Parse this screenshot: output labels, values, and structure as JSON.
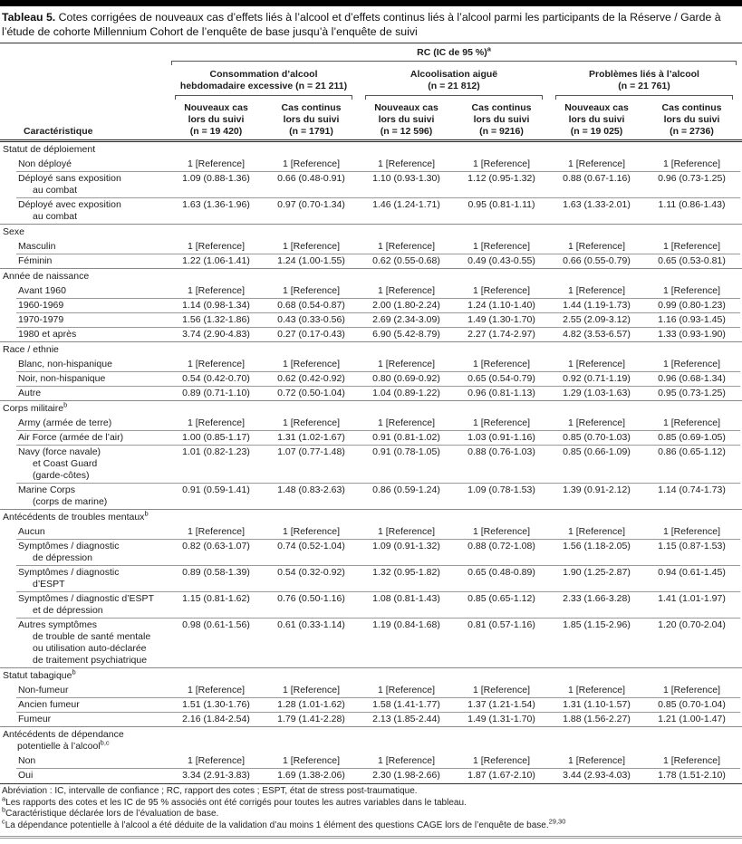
{
  "title": {
    "label": "Tableau 5.",
    "text": " Cotes corrigées de nouveaux cas d’effets liés à l’alcool et d’effets continus liés à l’alcool parmi les participants de la Réserve / Garde à l’étude de cohorte Millennium Cohort de l’enquête de base jusqu’à l’enquête de suivi"
  },
  "header": {
    "span_label": "RC (IC de 95 %)",
    "span_sup": "a",
    "row_label_header": "Caractéristique",
    "groups": [
      {
        "lines": [
          "Consommation d’alcool",
          "hebdomadaire excessive (n = 21 211)"
        ]
      },
      {
        "lines": [
          "Alcoolisation aiguë",
          "(n = 21 812)"
        ]
      },
      {
        "lines": [
          "Problèmes liés à l’alcool",
          "(n = 21 761)"
        ]
      }
    ],
    "columns": [
      {
        "lines": [
          "Nouveaux cas",
          "lors du suivi",
          "(n = 19 420)"
        ]
      },
      {
        "lines": [
          "Cas continus",
          "lors du suivi",
          "(n = 1791)"
        ]
      },
      {
        "lines": [
          "Nouveaux cas",
          "lors du suivi",
          "(n = 12 596)"
        ]
      },
      {
        "lines": [
          "Cas continus",
          "lors du suivi",
          "(n = 9216)"
        ]
      },
      {
        "lines": [
          "Nouveaux cas",
          "lors du suivi",
          "(n = 19 025)"
        ]
      },
      {
        "lines": [
          "Cas continus",
          "lors du suivi",
          "(n = 2736)"
        ]
      }
    ]
  },
  "sections": [
    {
      "label_lines": [
        "Statut de déploiement"
      ],
      "sup": "",
      "rows": [
        {
          "label_lines": [
            "Non déployé"
          ],
          "values": [
            "1 [Reference]",
            "1 [Reference]",
            "1 [Reference]",
            "1 [Reference]",
            "1 [Reference]",
            "1 [Reference]"
          ]
        },
        {
          "label_lines": [
            "Déployé sans exposition",
            "au combat"
          ],
          "values": [
            "1.09 (0.88-1.36)",
            "0.66 (0.48-0.91)",
            "1.10 (0.93-1.30)",
            "1.12 (0.95-1.32)",
            "0.88 (0.67-1.16)",
            "0.96 (0.73-1.25)"
          ]
        },
        {
          "label_lines": [
            "Déployé avec exposition",
            "au combat"
          ],
          "values": [
            "1.63 (1.36-1.96)",
            "0.97 (0.70-1.34)",
            "1.46 (1.24-1.71)",
            "0.95 (0.81-1.11)",
            "1.63 (1.33-2.01)",
            "1.11 (0.86-1.43)"
          ]
        }
      ]
    },
    {
      "label_lines": [
        "Sexe"
      ],
      "sup": "",
      "rows": [
        {
          "label_lines": [
            "Masculin"
          ],
          "values": [
            "1 [Reference]",
            "1 [Reference]",
            "1 [Reference]",
            "1 [Reference]",
            "1 [Reference]",
            "1 [Reference]"
          ]
        },
        {
          "label_lines": [
            "Féminin"
          ],
          "values": [
            "1.22 (1.06-1.41)",
            "1.24 (1.00-1.55)",
            "0.62 (0.55-0.68)",
            "0.49 (0.43-0.55)",
            "0.66 (0.55-0.79)",
            "0.65 (0.53-0.81)"
          ]
        }
      ]
    },
    {
      "label_lines": [
        "Année de naissance"
      ],
      "sup": "",
      "rows": [
        {
          "label_lines": [
            "Avant 1960"
          ],
          "values": [
            "1 [Reference]",
            "1 [Reference]",
            "1 [Reference]",
            "1 [Reference]",
            "1 [Reference]",
            "1 [Reference]"
          ]
        },
        {
          "label_lines": [
            "1960-1969"
          ],
          "values": [
            "1.14 (0.98-1.34)",
            "0.68 (0.54-0.87)",
            "2.00 (1.80-2.24)",
            "1.24 (1.10-1.40)",
            "1.44 (1.19-1.73)",
            "0.99 (0.80-1.23)"
          ]
        },
        {
          "label_lines": [
            "1970-1979"
          ],
          "values": [
            "1.56 (1.32-1.86)",
            "0.43 (0.33-0.56)",
            "2.69 (2.34-3.09)",
            "1.49 (1.30-1.70)",
            "2.55 (2.09-3.12)",
            "1.16 (0.93-1.45)"
          ]
        },
        {
          "label_lines": [
            "1980 et après"
          ],
          "values": [
            "3.74 (2.90-4.83)",
            "0.27 (0.17-0.43)",
            "6.90 (5.42-8.79)",
            "2.27 (1.74-2.97)",
            "4.82 (3.53-6.57)",
            "1.33 (0.93-1.90)"
          ]
        }
      ]
    },
    {
      "label_lines": [
        "Race / ethnie"
      ],
      "sup": "",
      "rows": [
        {
          "label_lines": [
            "Blanc, non-hispanique"
          ],
          "values": [
            "1 [Reference]",
            "1 [Reference]",
            "1 [Reference]",
            "1 [Reference]",
            "1 [Reference]",
            "1 [Reference]"
          ]
        },
        {
          "label_lines": [
            "Noir, non-hispanique"
          ],
          "values": [
            "0.54 (0.42-0.70)",
            "0.62 (0.42-0.92)",
            "0.80 (0.69-0.92)",
            "0.65 (0.54-0.79)",
            "0.92 (0.71-1.19)",
            "0.96 (0.68-1.34)"
          ]
        },
        {
          "label_lines": [
            "Autre"
          ],
          "values": [
            "0.89 (0.71-1.10)",
            "0.72 (0.50-1.04)",
            "1.04 (0.89-1.22)",
            "0.96 (0.81-1.13)",
            "1.29 (1.03-1.63)",
            "0.95 (0.73-1.25)"
          ]
        }
      ]
    },
    {
      "label_lines": [
        "Corps militaire"
      ],
      "sup": "b",
      "rows": [
        {
          "label_lines": [
            "Army (armée de terre)"
          ],
          "values": [
            "1 [Reference]",
            "1 [Reference]",
            "1 [Reference]",
            "1 [Reference]",
            "1 [Reference]",
            "1 [Reference]"
          ]
        },
        {
          "label_lines": [
            "Air Force (armée de l’air)"
          ],
          "values": [
            "1.00 (0.85-1.17)",
            "1.31 (1.02-1.67)",
            "0.91 (0.81-1.02)",
            "1.03 (0.91-1.16)",
            "0.85 (0.70-1.03)",
            "0.85 (0.69-1.05)"
          ]
        },
        {
          "label_lines": [
            "Navy (force navale)",
            "et Coast Guard",
            "(garde-côtes)"
          ],
          "values": [
            "1.01 (0.82-1.23)",
            "1.07 (0.77-1.48)",
            "0.91 (0.78-1.05)",
            "0.88 (0.76-1.03)",
            "0.85 (0.66-1.09)",
            "0.86 (0.65-1.12)"
          ]
        },
        {
          "label_lines": [
            "Marine Corps",
            "(corps de marine)"
          ],
          "values": [
            "0.91 (0.59-1.41)",
            "1.48 (0.83-2.63)",
            "0.86 (0.59-1.24)",
            "1.09 (0.78-1.53)",
            "1.39 (0.91-2.12)",
            "1.14 (0.74-1.73)"
          ]
        }
      ]
    },
    {
      "label_lines": [
        "Antécédents de troubles mentaux"
      ],
      "sup": "b",
      "rows": [
        {
          "label_lines": [
            "Aucun"
          ],
          "values": [
            "1 [Reference]",
            "1 [Reference]",
            "1 [Reference]",
            "1 [Reference]",
            "1 [Reference]",
            "1 [Reference]"
          ]
        },
        {
          "label_lines": [
            "Symptômes / diagnostic",
            "de dépression"
          ],
          "values": [
            "0.82 (0.63-1.07)",
            "0.74 (0.52-1.04)",
            "1.09 (0.91-1.32)",
            "0.88 (0.72-1.08)",
            "1.56 (1.18-2.05)",
            "1.15 (0.87-1.53)"
          ]
        },
        {
          "label_lines": [
            "Symptômes / diagnostic",
            "d’ESPT"
          ],
          "values": [
            "0.89 (0.58-1.39)",
            "0.54 (0.32-0.92)",
            "1.32 (0.95-1.82)",
            "0.65 (0.48-0.89)",
            "1.90 (1.25-2.87)",
            "0.94 (0.61-1.45)"
          ]
        },
        {
          "label_lines": [
            "Symptômes / diagnostic d’ESPT",
            "et de dépression"
          ],
          "values": [
            "1.15 (0.81-1.62)",
            "0.76 (0.50-1.16)",
            "1.08 (0.81-1.43)",
            "0.85 (0.65-1.12)",
            "2.33 (1.66-3.28)",
            "1.41 (1.01-1.97)"
          ]
        },
        {
          "label_lines": [
            "Autres symptômes",
            "de trouble de santé mentale",
            "ou utilisation auto-déclarée",
            "de traitement psychiatrique"
          ],
          "values": [
            "0.98 (0.61-1.56)",
            "0.61 (0.33-1.14)",
            "1.19 (0.84-1.68)",
            "0.81 (0.57-1.16)",
            "1.85 (1.15-2.96)",
            "1.20 (0.70-2.04)"
          ]
        }
      ]
    },
    {
      "label_lines": [
        "Statut tabagique"
      ],
      "sup": "b",
      "rows": [
        {
          "label_lines": [
            "Non-fumeur"
          ],
          "values": [
            "1 [Reference]",
            "1 [Reference]",
            "1 [Reference]",
            "1 [Reference]",
            "1 [Reference]",
            "1 [Reference]"
          ]
        },
        {
          "label_lines": [
            "Ancien fumeur"
          ],
          "values": [
            "1.51 (1.30-1.76)",
            "1.28 (1.01-1.62)",
            "1.58 (1.41-1.77)",
            "1.37 (1.21-1.54)",
            "1.31 (1.10-1.57)",
            "0.85 (0.70-1.04)"
          ]
        },
        {
          "label_lines": [
            "Fumeur"
          ],
          "values": [
            "2.16 (1.84-2.54)",
            "1.79 (1.41-2.28)",
            "2.13 (1.85-2.44)",
            "1.49 (1.31-1.70)",
            "1.88 (1.56-2.27)",
            "1.21 (1.00-1.47)"
          ]
        }
      ]
    },
    {
      "label_lines": [
        "Antécédents de dépendance",
        "potentielle à l’alcool"
      ],
      "sup": "b,c",
      "rows": [
        {
          "label_lines": [
            "Non"
          ],
          "values": [
            "1 [Reference]",
            "1 [Reference]",
            "1 [Reference]",
            "1 [Reference]",
            "1 [Reference]",
            "1 [Reference]"
          ]
        },
        {
          "label_lines": [
            "Oui"
          ],
          "values": [
            "3.34 (2.91-3.83)",
            "1.69 (1.38-2.06)",
            "2.30 (1.98-2.66)",
            "1.87 (1.67-2.10)",
            "3.44 (2.93-4.03)",
            "1.78 (1.51-2.10)"
          ]
        }
      ]
    }
  ],
  "footnotes": [
    {
      "sup": "",
      "text": "Abréviation : IC, intervalle de confiance ; RC, rapport des cotes ; ESPT, état de stress post-traumatique.",
      "end_sup": ""
    },
    {
      "sup": "a",
      "text": "Les rapports des cotes et les IC de 95 % associés ont été corrigés pour toutes les autres variables dans le tableau.",
      "end_sup": ""
    },
    {
      "sup": "b",
      "text": "Caractéristique déclarée lors de l’évaluation de base.",
      "end_sup": ""
    },
    {
      "sup": "c",
      "text": "La dépendance potentielle à l’alcool a été déduite de la validation d’au moins 1 élément des questions CAGE lors de l’enquête de base.",
      "end_sup": "29,30"
    }
  ]
}
